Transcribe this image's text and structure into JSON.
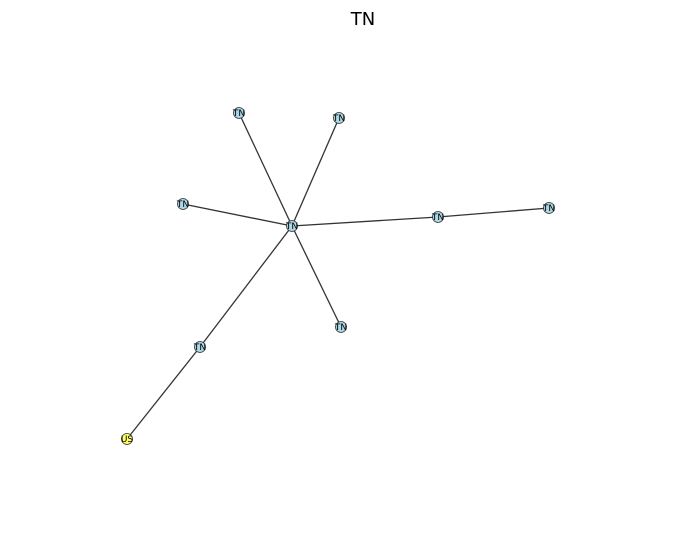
{
  "title": "TN",
  "colors": {
    "node_default": "#add8e6",
    "node_highlight": "#ffff66",
    "edge": "#333333"
  },
  "nodes": [
    {
      "id": "n0",
      "label": "TN",
      "color": "node_default"
    },
    {
      "id": "n1",
      "label": "TN",
      "color": "node_default"
    },
    {
      "id": "n2",
      "label": "TN",
      "color": "node_default"
    },
    {
      "id": "n3",
      "label": "TN",
      "color": "node_default"
    },
    {
      "id": "n4",
      "label": "TN",
      "color": "node_default"
    },
    {
      "id": "n5",
      "label": "TN",
      "color": "node_default"
    },
    {
      "id": "n6",
      "label": "TN",
      "color": "node_default"
    },
    {
      "id": "n7",
      "label": "TN",
      "color": "node_default"
    },
    {
      "id": "n8",
      "label": "US",
      "color": "node_highlight"
    }
  ],
  "edges": [
    {
      "source": "n0",
      "target": "n1"
    },
    {
      "source": "n0",
      "target": "n2"
    },
    {
      "source": "n0",
      "target": "n3"
    },
    {
      "source": "n0",
      "target": "n4"
    },
    {
      "source": "n0",
      "target": "n6"
    },
    {
      "source": "n0",
      "target": "n7"
    },
    {
      "source": "n4",
      "target": "n5"
    },
    {
      "source": "n7",
      "target": "n8"
    }
  ]
}
